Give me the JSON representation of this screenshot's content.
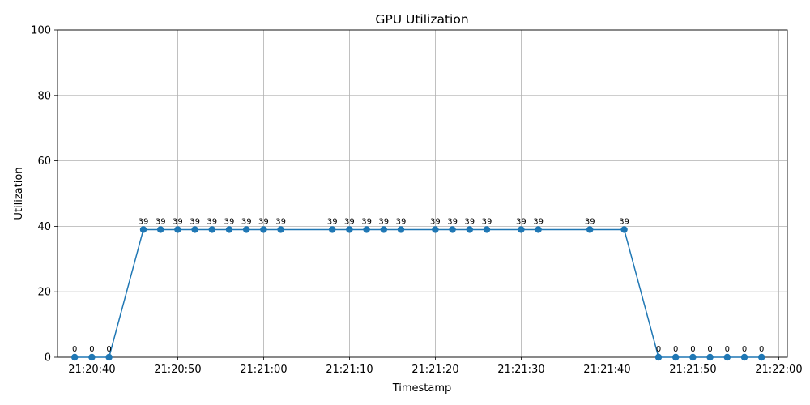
{
  "chart_data": {
    "type": "line",
    "title": "GPU Utilization",
    "xlabel": "Timestamp",
    "ylabel": "Utilization",
    "ylim": [
      0,
      100
    ],
    "xlim": [
      "21:20:36",
      "21:22:01"
    ],
    "grid": true,
    "x_ticks": [
      "21:20:40",
      "21:20:50",
      "21:21:00",
      "21:21:10",
      "21:21:20",
      "21:21:30",
      "21:21:40",
      "21:21:50",
      "21:22:00"
    ],
    "y_ticks": [
      0,
      20,
      40,
      60,
      80,
      100
    ],
    "series": [
      {
        "color": "#1f77b4",
        "marker": "circle",
        "x": [
          "21:20:38",
          "21:20:40",
          "21:20:42",
          "21:20:46",
          "21:20:48",
          "21:20:50",
          "21:20:52",
          "21:20:54",
          "21:20:56",
          "21:20:58",
          "21:21:00",
          "21:21:02",
          "21:21:08",
          "21:21:10",
          "21:21:12",
          "21:21:14",
          "21:21:16",
          "21:21:20",
          "21:21:22",
          "21:21:24",
          "21:21:26",
          "21:21:30",
          "21:21:32",
          "21:21:38",
          "21:21:42",
          "21:21:46",
          "21:21:48",
          "21:21:50",
          "21:21:52",
          "21:21:54",
          "21:21:56",
          "21:21:58"
        ],
        "values": [
          0,
          0,
          0,
          39,
          39,
          39,
          39,
          39,
          39,
          39,
          39,
          39,
          39,
          39,
          39,
          39,
          39,
          39,
          39,
          39,
          39,
          39,
          39,
          39,
          39,
          0,
          0,
          0,
          0,
          0,
          0,
          0
        ]
      }
    ]
  }
}
